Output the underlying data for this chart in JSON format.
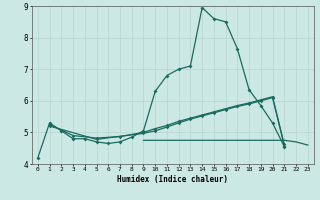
{
  "xlabel": "Humidex (Indice chaleur)",
  "bg_color": "#cce8e4",
  "grid_color": "#b8d4d0",
  "line_color": "#1a6b5e",
  "xlim": [
    -0.5,
    23.5
  ],
  "ylim": [
    4,
    9
  ],
  "xticks": [
    0,
    1,
    2,
    3,
    4,
    5,
    6,
    7,
    8,
    9,
    10,
    11,
    12,
    13,
    14,
    15,
    16,
    17,
    18,
    19,
    20,
    21,
    22,
    23
  ],
  "yticks": [
    4,
    5,
    6,
    7,
    8,
    9
  ],
  "line1_x": [
    0,
    1,
    2,
    3,
    4,
    5,
    6,
    7,
    8,
    9,
    10,
    11,
    12,
    13,
    14,
    15,
    16,
    17,
    18,
    19,
    20,
    21
  ],
  "line1_y": [
    4.2,
    5.3,
    5.05,
    4.8,
    4.8,
    4.7,
    4.65,
    4.7,
    4.85,
    5.05,
    6.3,
    6.8,
    7.0,
    7.1,
    8.95,
    8.6,
    8.5,
    7.65,
    6.35,
    5.85,
    5.3,
    4.55
  ],
  "line2_x": [
    1,
    3,
    5,
    7,
    9,
    10,
    11,
    12,
    13,
    14,
    15,
    16,
    17,
    18,
    19,
    20,
    21
  ],
  "line2_y": [
    5.25,
    4.9,
    4.82,
    4.87,
    5.0,
    5.12,
    5.22,
    5.35,
    5.45,
    5.55,
    5.65,
    5.75,
    5.85,
    5.93,
    6.03,
    6.13,
    4.62
  ],
  "line3_x": [
    1,
    5,
    9,
    10,
    11,
    12,
    13,
    14,
    15,
    16,
    17,
    18,
    19,
    20,
    21
  ],
  "line3_y": [
    5.2,
    4.78,
    4.97,
    5.05,
    5.17,
    5.3,
    5.42,
    5.52,
    5.62,
    5.72,
    5.82,
    5.9,
    6.0,
    6.1,
    4.58
  ],
  "line4_x": [
    9,
    10,
    11,
    12,
    13,
    14,
    15,
    16,
    17,
    18,
    19,
    20,
    21,
    22,
    23
  ],
  "line4_y": [
    4.75,
    4.75,
    4.75,
    4.75,
    4.75,
    4.75,
    4.75,
    4.75,
    4.75,
    4.75,
    4.75,
    4.75,
    4.75,
    4.7,
    4.6
  ]
}
